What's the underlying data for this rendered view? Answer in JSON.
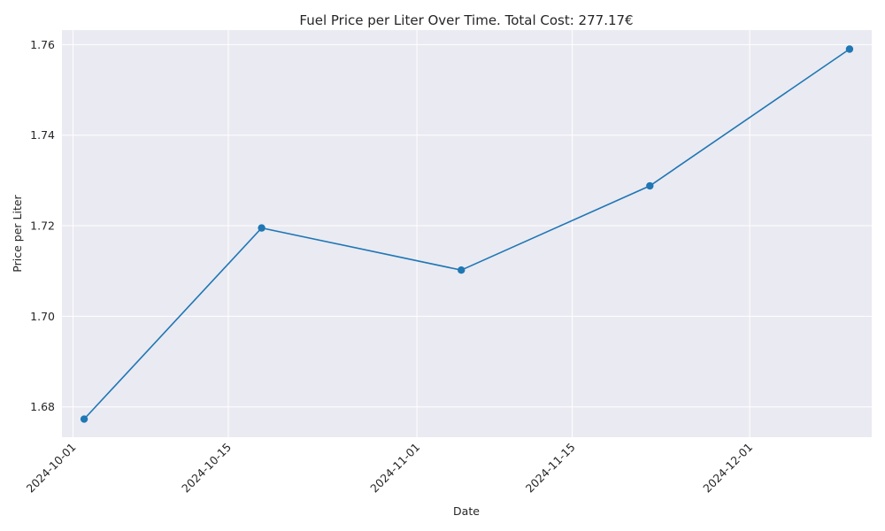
{
  "chart_data": {
    "type": "line",
    "title": "Fuel Price per Liter Over Time. Total Cost: 277.17€",
    "xlabel": "Date",
    "ylabel": "Price per Liter",
    "x": [
      "2024-10-02",
      "2024-10-18",
      "2024-11-05",
      "2024-11-22",
      "2024-12-10"
    ],
    "series": [
      {
        "values": [
          1.6773,
          1.7195,
          1.7102,
          1.7288,
          1.759
        ]
      }
    ],
    "xlim": [
      "2024-09-30",
      "2024-12-12"
    ],
    "ylim": [
      1.6733,
      1.7632
    ],
    "xticks": [
      "2024-10-01",
      "2024-10-15",
      "2024-11-01",
      "2024-11-15",
      "2024-12-01"
    ],
    "yticks": [
      1.68,
      1.7,
      1.72,
      1.74,
      1.76
    ],
    "ytick_labels": [
      "1.68",
      "1.70",
      "1.72",
      "1.74",
      "1.76"
    ],
    "grid": true,
    "colors": {
      "line": "#1f77b4",
      "plot_bg": "#eaeaf2",
      "grid": "#ffffff"
    }
  }
}
